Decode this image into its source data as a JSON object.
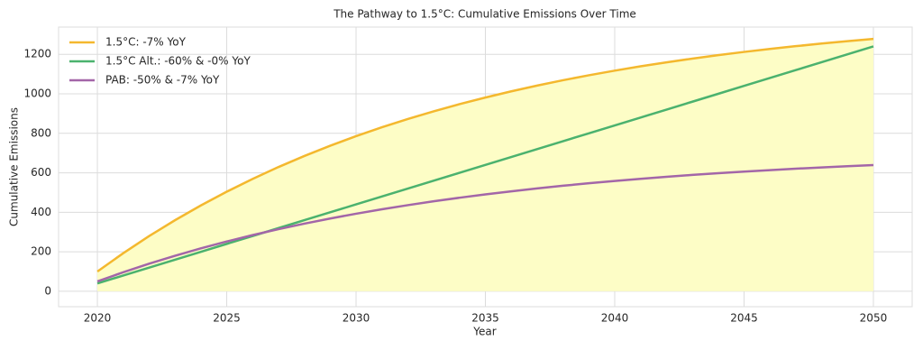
{
  "chart_data": {
    "type": "line",
    "title": "The Pathway to 1.5°C: Cumulative Emissions Over Time",
    "xlabel": "Year",
    "ylabel": "Cumulative Emissions",
    "x": [
      2020,
      2021,
      2022,
      2023,
      2024,
      2025,
      2026,
      2027,
      2028,
      2029,
      2030,
      2031,
      2032,
      2033,
      2034,
      2035,
      2036,
      2037,
      2038,
      2039,
      2040,
      2041,
      2042,
      2043,
      2044,
      2045,
      2046,
      2047,
      2048,
      2049,
      2050
    ],
    "series": [
      {
        "name": "1.5°C: -7% YoY",
        "color": "#f4b82e",
        "fill_color": "#fdfdc6",
        "values": [
          100,
          193,
          279.5,
          359.9,
          434.7,
          504.3,
          569.0,
          629.2,
          685.1,
          737.2,
          785.6,
          830.6,
          872.4,
          911.4,
          947.6,
          981.2,
          1012.6,
          1041.7,
          1068.8,
          1093.9,
          1117.4,
          1139.2,
          1159.4,
          1178.3,
          1195.8,
          1212.1,
          1227.2,
          1241.3,
          1254.4,
          1266.6,
          1278.0
        ]
      },
      {
        "name": "1.5°C Alt.: -60% & -0% YoY",
        "color": "#4bb26e",
        "values": [
          40,
          80,
          120,
          160,
          200,
          240,
          280,
          320,
          360,
          400,
          440,
          480,
          520,
          560,
          600,
          640,
          680,
          720,
          760,
          800,
          840,
          880,
          920,
          960,
          1000,
          1040,
          1080,
          1120,
          1160,
          1200,
          1240
        ]
      },
      {
        "name": "PAB: -50% & -7% YoY",
        "color": "#a366a8",
        "values": [
          50,
          96.5,
          139.8,
          180.0,
          217.4,
          252.2,
          284.5,
          314.6,
          342.6,
          368.6,
          392.8,
          415.3,
          436.2,
          455.7,
          473.8,
          490.6,
          506.3,
          520.9,
          534.4,
          547.0,
          558.7,
          569.6,
          579.7,
          589.2,
          597.9,
          606.1,
          613.6,
          620.7,
          627.2,
          633.3,
          639.0
        ]
      }
    ],
    "xlim": [
      2018.5,
      2051.5
    ],
    "xticks": [
      2020,
      2025,
      2030,
      2035,
      2040,
      2045,
      2050
    ],
    "ylim": [
      -78,
      1338
    ],
    "yticks": [
      0,
      200,
      400,
      600,
      800,
      1000,
      1200
    ],
    "grid": true,
    "legend": "upper left"
  }
}
